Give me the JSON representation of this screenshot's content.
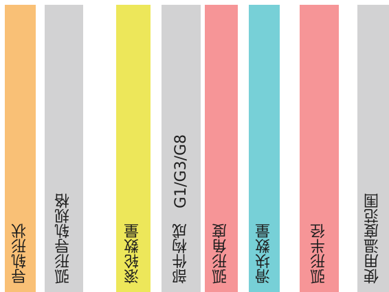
{
  "columns": [
    {
      "label": "导轨形状",
      "color": "#f9c076"
    },
    {
      "label": "弧形导轨规格",
      "color": "#d2d2d3"
    },
    {
      "label": "滚轮数量",
      "color": "#ede75a"
    },
    {
      "label": "部件构成　G1/G3/G8",
      "color": "#d2d2d3"
    },
    {
      "label": "弧形角度",
      "color": "#f69597"
    },
    {
      "label": "滑块数量",
      "color": "#77d0d7"
    },
    {
      "label": "弧形半径",
      "color": "#f69597"
    },
    {
      "label": "使用温度范围",
      "color": "#d2d2d3"
    }
  ]
}
